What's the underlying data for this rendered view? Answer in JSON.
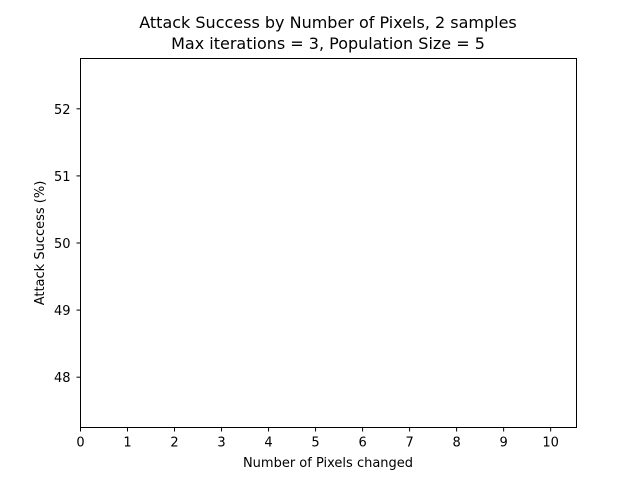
{
  "chart_data": {
    "type": "scatter",
    "title": "Attack Success by Number of Pixels, 2 samples",
    "subtitle": "Max iterations = 3, Population Size = 5",
    "xlabel": "Number of Pixels changed",
    "ylabel": "Attack Success (%)",
    "xlim": [
      0,
      10.55
    ],
    "ylim": [
      47.25,
      52.75
    ],
    "x_ticks": [
      0,
      1,
      2,
      3,
      4,
      5,
      6,
      7,
      8,
      9,
      10
    ],
    "y_ticks": [
      48,
      49,
      50,
      51,
      52
    ],
    "grid": false,
    "series": []
  }
}
